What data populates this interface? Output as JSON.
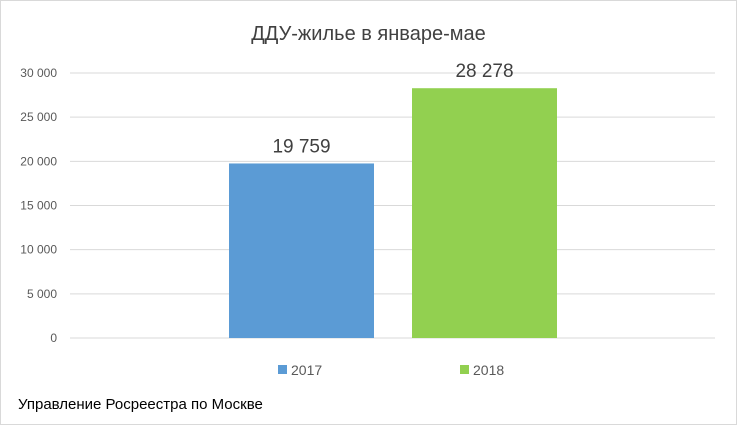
{
  "chart_data": {
    "type": "bar",
    "title": "ДДУ-жилье в январе-мае",
    "categories": [
      ""
    ],
    "series": [
      {
        "name": "2017",
        "values": [
          19759
        ],
        "label": "19 759",
        "color": "#5b9bd5"
      },
      {
        "name": "2018",
        "values": [
          28278
        ],
        "label": "28 278",
        "color": "#92d050"
      }
    ],
    "ylim": [
      0,
      30000
    ],
    "yticks": [
      0,
      5000,
      10000,
      15000,
      20000,
      25000,
      30000
    ],
    "ytick_labels": [
      "0",
      "5 000",
      "10 000",
      "15 000",
      "20 000",
      "25 000",
      "30 000"
    ],
    "grid": true,
    "legend_position": "bottom",
    "xlabel": "",
    "ylabel": ""
  },
  "source_note": "Управление Росреестра по Москве"
}
